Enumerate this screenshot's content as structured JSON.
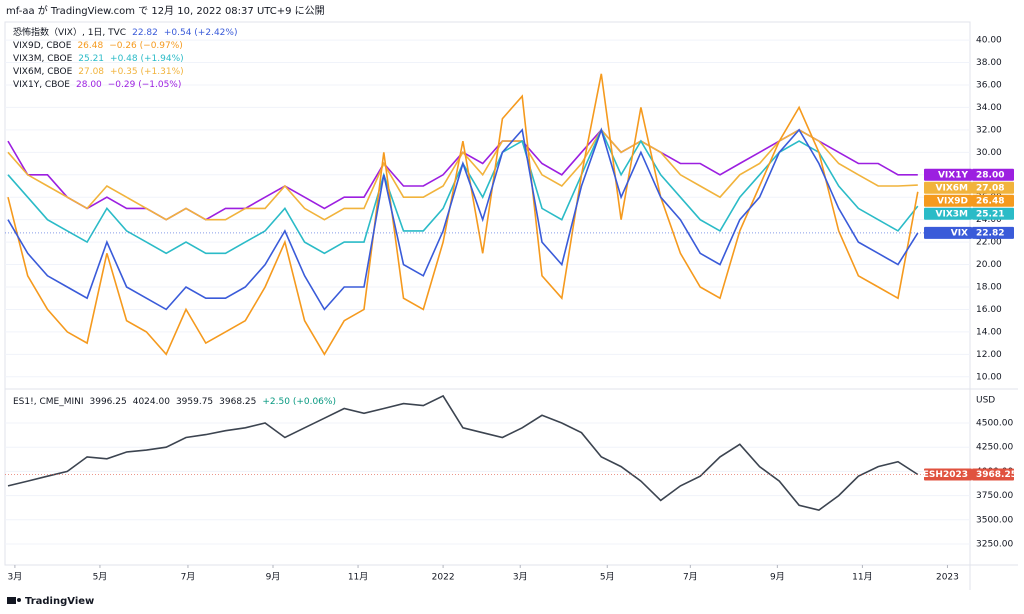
{
  "header": "mf-aa が TradingView.com で 12月 10, 2022 08:37 UTC+9 に公開",
  "footer": "TradingView",
  "chart_data": [
    {
      "type": "line",
      "xlim": [
        -0.15,
        48.64
      ],
      "ylim": [
        9.0,
        40.9
      ],
      "yticks": [
        {
          "value": 10,
          "label": "10.00"
        },
        {
          "value": 12,
          "label": "12.00"
        },
        {
          "value": 14,
          "label": "14.00"
        },
        {
          "value": 16,
          "label": "16.00"
        },
        {
          "value": 18,
          "label": "18.00"
        },
        {
          "value": 20,
          "label": "20.00"
        },
        {
          "value": 22,
          "label": "22.00"
        },
        {
          "value": 24,
          "label": "24.00"
        },
        {
          "value": 26,
          "label": "26.00"
        },
        {
          "value": 28,
          "label": "28.00"
        },
        {
          "value": 30,
          "label": "30.00"
        },
        {
          "value": 32,
          "label": "32.00"
        },
        {
          "value": 34,
          "label": "34.00"
        },
        {
          "value": 36,
          "label": "36.00"
        },
        {
          "value": 38,
          "label": "38.00"
        },
        {
          "value": 40,
          "label": "40.00"
        }
      ],
      "series": [
        {
          "name": "恐怖指数（VIX）, 1日, TVC",
          "tag": "VIX",
          "color": "#3a5bd9",
          "last_label": "22.82",
          "change": "+0.54 (+2.42%)",
          "values": [
            24,
            21,
            19,
            18,
            17,
            22,
            18,
            17,
            16,
            18,
            17,
            17,
            18,
            20,
            23,
            19,
            16,
            18,
            18,
            28,
            20,
            19,
            23,
            29,
            24,
            30,
            32,
            22,
            20,
            27,
            32,
            26,
            30,
            26,
            24,
            21,
            20,
            24,
            26,
            30,
            32,
            29,
            25,
            22,
            21,
            20,
            22.82
          ]
        },
        {
          "name": "VIX9D, CBOE",
          "tag": "VIX9D",
          "color": "#f59a1e",
          "last_label": "26.48",
          "change": "−0.26 (−0.97%)",
          "values": [
            26,
            19,
            16,
            14,
            13,
            21,
            15,
            14,
            12,
            16,
            13,
            14,
            15,
            18,
            22,
            15,
            12,
            15,
            16,
            30,
            17,
            16,
            22,
            31,
            21,
            33,
            35,
            19,
            17,
            28,
            37,
            24,
            34,
            26,
            21,
            18,
            17,
            23,
            27,
            31,
            34,
            30,
            23,
            19,
            18,
            17,
            26.48
          ]
        },
        {
          "name": "VIX3M, CBOE",
          "tag": "VIX3M",
          "color": "#2bbbc7",
          "last_label": "25.21",
          "change": "+0.48 (+1.94%)",
          "values": [
            28,
            26,
            24,
            23,
            22,
            25,
            23,
            22,
            21,
            22,
            21,
            21,
            22,
            23,
            25,
            22,
            21,
            22,
            22,
            28,
            23,
            23,
            25,
            29,
            26,
            30,
            31,
            25,
            24,
            28,
            32,
            28,
            31,
            28,
            26,
            24,
            23,
            26,
            28,
            30,
            31,
            30,
            27,
            25,
            24,
            23,
            25.21
          ]
        },
        {
          "name": "VIX6M, CBOE",
          "tag": "VIX6M",
          "color": "#f1b33c",
          "last_label": "27.08",
          "change": "+0.35 (+1.31%)",
          "values": [
            30,
            28,
            27,
            26,
            25,
            27,
            26,
            25,
            24,
            25,
            24,
            24,
            25,
            25,
            27,
            25,
            24,
            25,
            25,
            29,
            26,
            26,
            27,
            30,
            28,
            31,
            31,
            28,
            27,
            29,
            32,
            30,
            31,
            30,
            28,
            27,
            26,
            28,
            29,
            31,
            32,
            31,
            29,
            28,
            27,
            27,
            27.08
          ]
        },
        {
          "name": "VIX1Y, CBOE",
          "tag": "VIX1Y",
          "color": "#9c1fe0",
          "last_label": "28.00",
          "change": "−0.29 (−1.05%)",
          "values": [
            31,
            28,
            28,
            26,
            25,
            26,
            25,
            25,
            24,
            25,
            24,
            25,
            25,
            26,
            27,
            26,
            25,
            26,
            26,
            29,
            27,
            27,
            28,
            30,
            29,
            31,
            31,
            29,
            28,
            30,
            32,
            30,
            31,
            30,
            29,
            29,
            28,
            29,
            30,
            31,
            32,
            31,
            30,
            29,
            29,
            28,
            28
          ]
        }
      ]
    },
    {
      "type": "line",
      "xlim": [
        -0.15,
        48.64
      ],
      "ylim": [
        3033,
        4841
      ],
      "unit": "USD",
      "yticks": [
        {
          "value": 3250,
          "label": "3250.00"
        },
        {
          "value": 3500,
          "label": "3500.00"
        },
        {
          "value": 3750,
          "label": "3750.00"
        },
        {
          "value": 4000,
          "label": "4000.00"
        },
        {
          "value": 4250,
          "label": "4250.00"
        },
        {
          "value": 4500,
          "label": "4500.00"
        }
      ],
      "series": [
        {
          "name": "ES1!, CME_MINI",
          "tag": "ESH2023",
          "color": "#3c4450",
          "tag_color": "#e0523f",
          "last_label": "3968.25",
          "ohlc": [
            "3996.25",
            "4024.00",
            "3959.75",
            "3968.25"
          ],
          "change": "+2.50 (+0.06%)",
          "values": [
            3850,
            3900,
            3950,
            4000,
            4150,
            4130,
            4200,
            4220,
            4250,
            4350,
            4380,
            4420,
            4450,
            4500,
            4350,
            4450,
            4550,
            4650,
            4600,
            4650,
            4700,
            4680,
            4780,
            4450,
            4400,
            4350,
            4450,
            4580,
            4500,
            4400,
            4150,
            4050,
            3900,
            3700,
            3850,
            3950,
            4150,
            4280,
            4050,
            3900,
            3650,
            3600,
            3750,
            3950,
            4050,
            4100,
            3968.25
          ]
        }
      ],
      "x_labels": [
        {
          "value": 0.35,
          "label": "3月"
        },
        {
          "value": 4.65,
          "label": "5月"
        },
        {
          "value": 9.1,
          "label": "7月"
        },
        {
          "value": 13.4,
          "label": "9月"
        },
        {
          "value": 17.7,
          "label": "11月"
        },
        {
          "value": 22.0,
          "label": "2022"
        },
        {
          "value": 25.9,
          "label": "3月"
        },
        {
          "value": 30.3,
          "label": "5月"
        },
        {
          "value": 34.5,
          "label": "7月"
        },
        {
          "value": 38.9,
          "label": "9月"
        },
        {
          "value": 43.2,
          "label": "11月"
        },
        {
          "value": 47.5,
          "label": "2023"
        }
      ]
    }
  ]
}
